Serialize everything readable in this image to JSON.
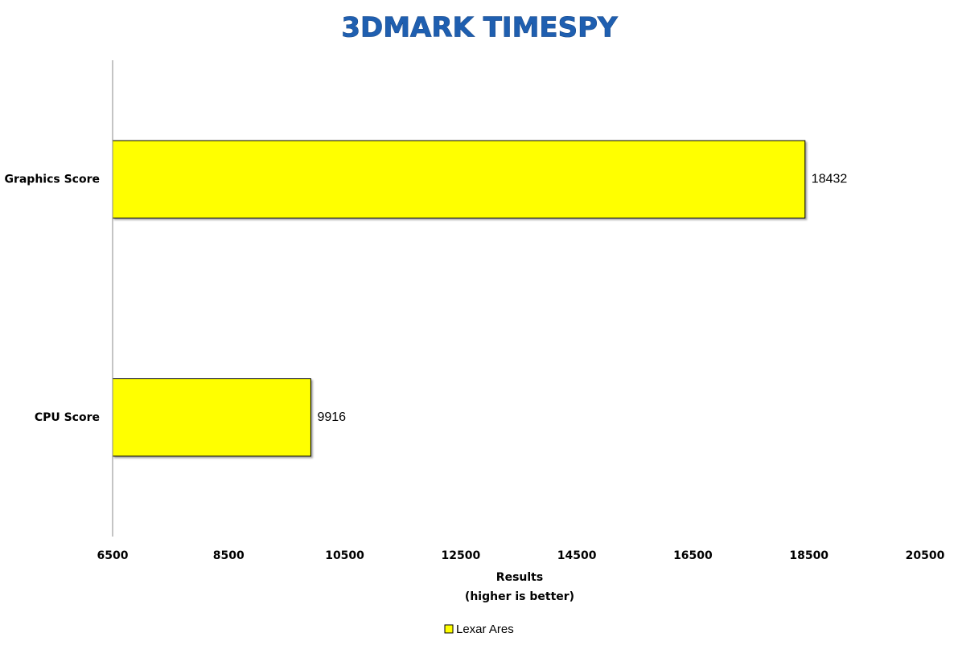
{
  "chart_data": {
    "type": "bar",
    "orientation": "horizontal",
    "title": "3DMARK TIMESPY",
    "xlabel": "Results",
    "xlabel_note": "(higher is better)",
    "categories": [
      "Graphics Score",
      "CPU Score"
    ],
    "series": [
      {
        "name": "Lexar Ares",
        "color": "#ffff00",
        "values": [
          18432,
          9916
        ]
      }
    ],
    "xlim": [
      6500,
      20500
    ],
    "xticks": [
      6500,
      8500,
      10500,
      12500,
      14500,
      16500,
      18500,
      20500
    ],
    "grid": false,
    "legend": "bottom"
  }
}
